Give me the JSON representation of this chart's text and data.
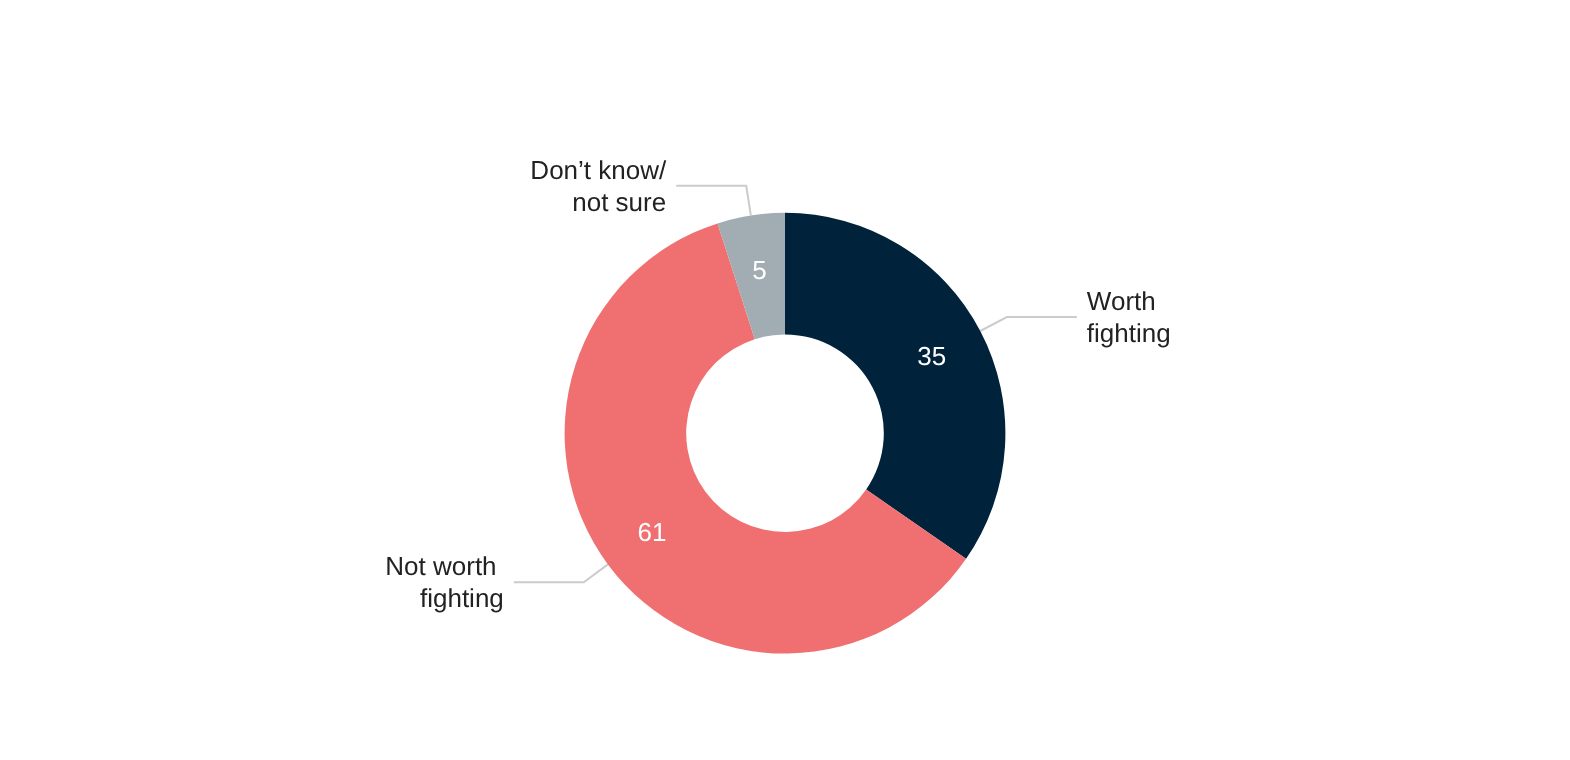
{
  "chart_data": {
    "type": "donut",
    "categories": [
      "Worth fighting",
      "Not worth fighting",
      "Don’t know/ not sure"
    ],
    "values": [
      35,
      61,
      5
    ],
    "colors": [
      "#00233b",
      "#f07071",
      "#a2adb3"
    ],
    "data_labels": true,
    "legend": false
  }
}
